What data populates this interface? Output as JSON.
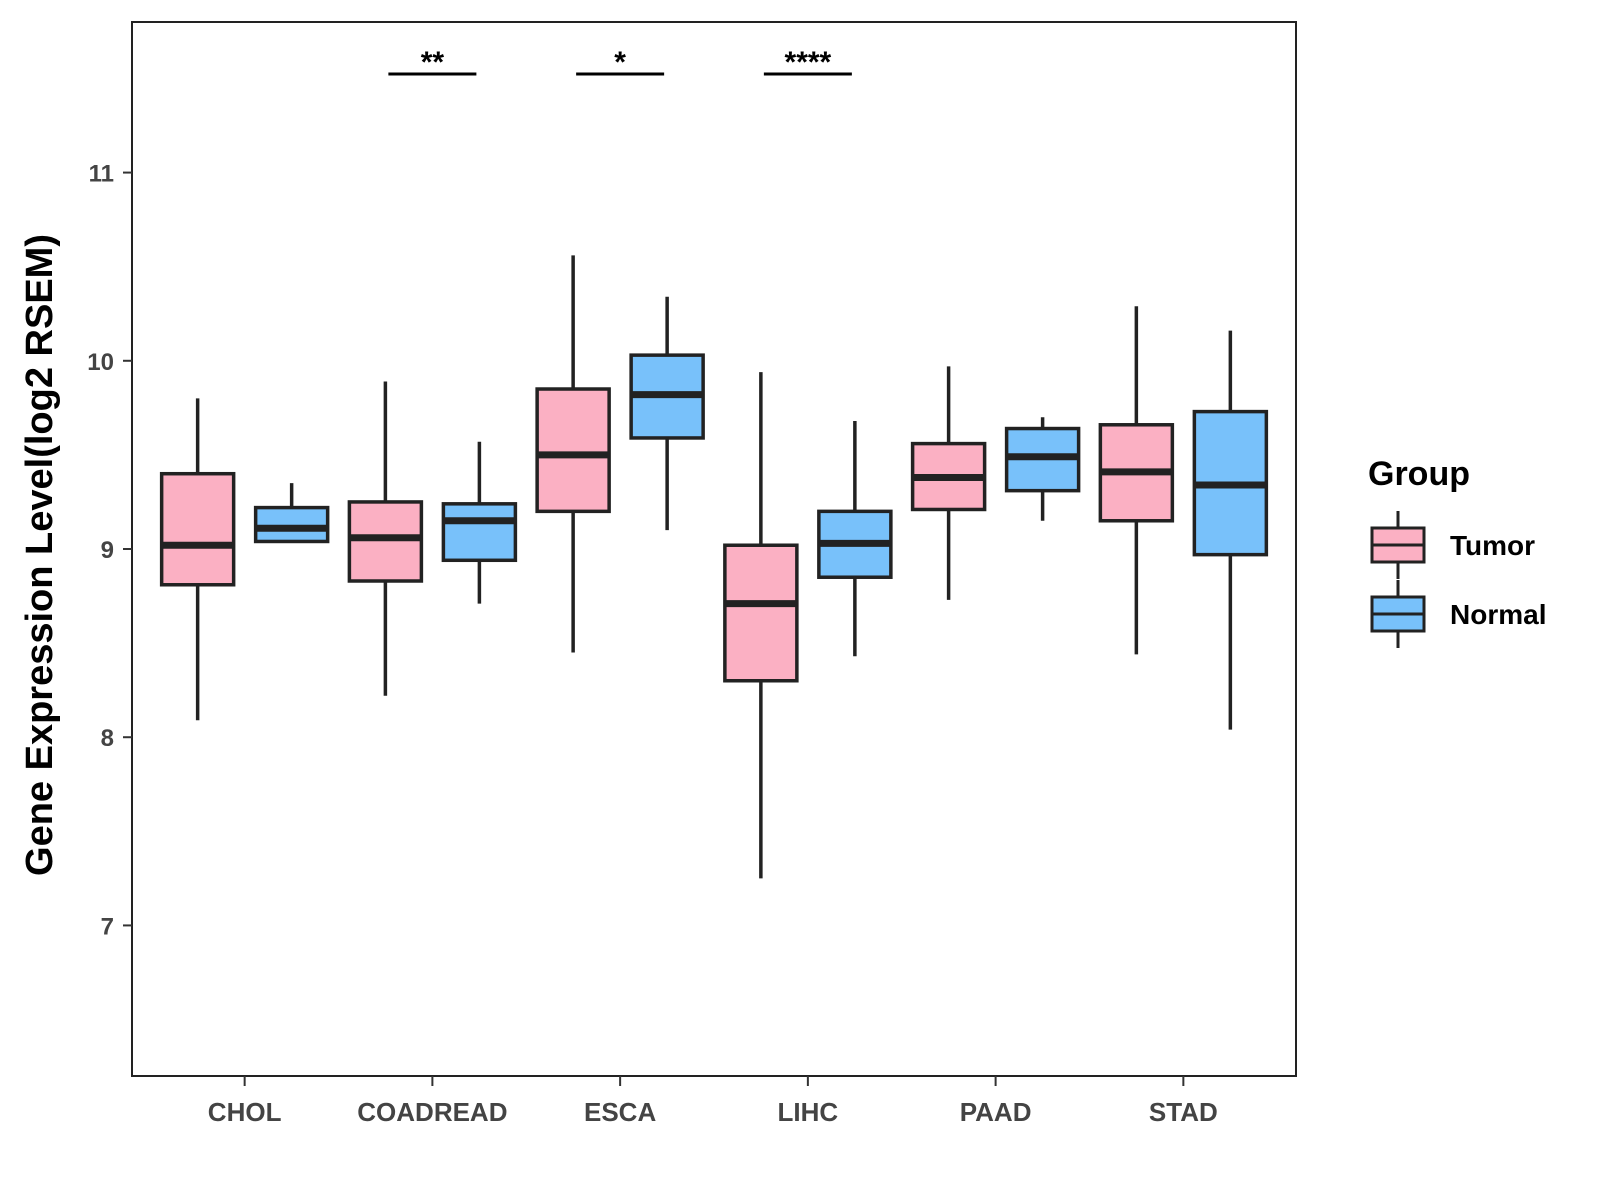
{
  "chart_data": {
    "type": "boxplot",
    "title": "",
    "xlabel": "",
    "ylabel": "Gene Expression Level(log2 RSEM)",
    "ylim": [
      6.2,
      11.8
    ],
    "yticks": [
      7,
      8,
      9,
      10,
      11
    ],
    "categories": [
      "CHOL",
      "COADREAD",
      "ESCA",
      "LIHC",
      "PAAD",
      "STAD"
    ],
    "legend": {
      "title": "Group",
      "position": "right"
    },
    "series": [
      {
        "name": "Tumor",
        "color": "#FBB0C3",
        "boxes": [
          {
            "min": 8.09,
            "q1": 8.81,
            "median": 9.02,
            "q3": 9.4,
            "max": 9.8
          },
          {
            "min": 8.22,
            "q1": 8.83,
            "median": 9.06,
            "q3": 9.25,
            "max": 9.89
          },
          {
            "min": 8.45,
            "q1": 9.2,
            "median": 9.5,
            "q3": 9.85,
            "max": 10.56
          },
          {
            "min": 7.25,
            "q1": 8.3,
            "median": 8.71,
            "q3": 9.02,
            "max": 9.94
          },
          {
            "min": 8.73,
            "q1": 9.21,
            "median": 9.38,
            "q3": 9.56,
            "max": 9.97
          },
          {
            "min": 8.44,
            "q1": 9.15,
            "median": 9.41,
            "q3": 9.66,
            "max": 10.29
          }
        ]
      },
      {
        "name": "Normal",
        "color": "#78C1FA",
        "boxes": [
          {
            "min": 9.04,
            "q1": 9.04,
            "median": 9.11,
            "q3": 9.22,
            "max": 9.35
          },
          {
            "min": 8.71,
            "q1": 8.94,
            "median": 9.15,
            "q3": 9.24,
            "max": 9.57
          },
          {
            "min": 9.1,
            "q1": 9.59,
            "median": 9.82,
            "q3": 10.03,
            "max": 10.34
          },
          {
            "min": 8.43,
            "q1": 8.85,
            "median": 9.03,
            "q3": 9.2,
            "max": 9.68
          },
          {
            "min": 9.15,
            "q1": 9.31,
            "median": 9.49,
            "q3": 9.64,
            "max": 9.7
          },
          {
            "min": 8.04,
            "q1": 8.97,
            "median": 9.34,
            "q3": 9.73,
            "max": 10.16
          }
        ]
      }
    ],
    "significance": [
      {
        "category": "CHOL",
        "label": ""
      },
      {
        "category": "COADREAD",
        "label": "**"
      },
      {
        "category": "ESCA",
        "label": "*"
      },
      {
        "category": "LIHC",
        "label": "****"
      },
      {
        "category": "PAAD",
        "label": ""
      },
      {
        "category": "STAD",
        "label": ""
      }
    ]
  }
}
